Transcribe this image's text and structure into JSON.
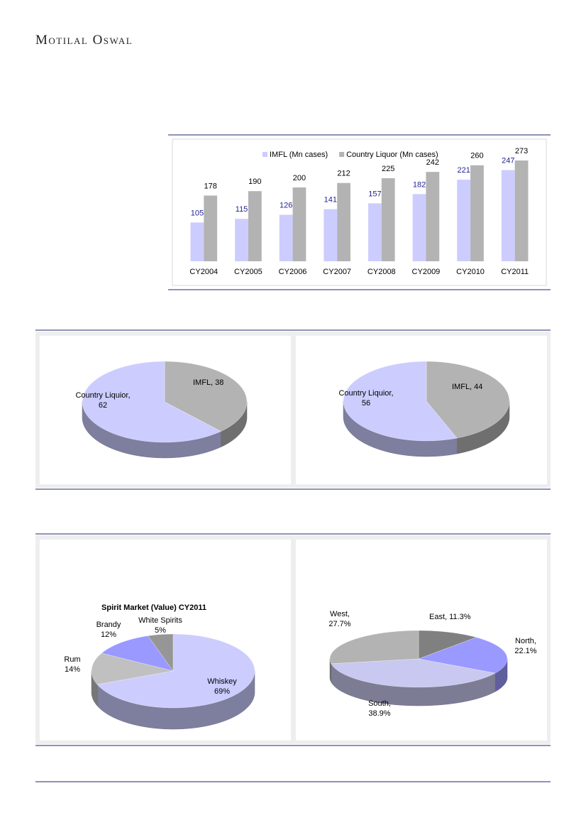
{
  "header": {
    "brand": "Motilal Oswal"
  },
  "chart_data": [
    {
      "type": "bar",
      "categories": [
        "CY2004",
        "CY2005",
        "CY2006",
        "CY2007",
        "CY2008",
        "CY2009",
        "CY2010",
        "CY2011"
      ],
      "series": [
        {
          "name": "IMFL (Mn cases)",
          "color": "#ccccff",
          "label_color": "#1f1f8f",
          "values": [
            105,
            115,
            126,
            141,
            157,
            182,
            221,
            247
          ]
        },
        {
          "name": "Country Liquor (Mn cases)",
          "color": "#b3b3b3",
          "label_color": "#000000",
          "values": [
            178,
            190,
            200,
            212,
            225,
            242,
            260,
            273
          ]
        }
      ],
      "ylim": [
        0,
        300
      ]
    },
    {
      "type": "pie",
      "values": [
        38,
        62
      ],
      "value_labels": [
        "IMFL, 38",
        "Country Liquior, 62"
      ],
      "colors": [
        "#b3b3b3",
        "#ccccff"
      ]
    },
    {
      "type": "pie",
      "values": [
        44,
        56
      ],
      "value_labels": [
        "IMFL, 44",
        "Country Liquior, 56"
      ],
      "colors": [
        "#b3b3b3",
        "#ccccff"
      ]
    },
    {
      "type": "pie",
      "title": "Spirit Market (Value) CY2011",
      "categories": [
        "Whiskey",
        "Rum",
        "Brandy",
        "White Spirits"
      ],
      "values": [
        69,
        14,
        12,
        5
      ],
      "value_labels": [
        "69%",
        "14%",
        "12%",
        "5%"
      ],
      "colors": [
        "#ccccff",
        "#c0c0c0",
        "#9999ff",
        "#969696"
      ]
    },
    {
      "type": "pie",
      "values": [
        11.3,
        22.1,
        38.9,
        27.7
      ],
      "value_labels": [
        "East, 11.3%",
        "North, 22.1%",
        "South, 38.9%",
        "West, 27.7%"
      ],
      "colors": [
        "#808080",
        "#9999ff",
        "#c8c8f0",
        "#b3b3b3"
      ]
    }
  ]
}
